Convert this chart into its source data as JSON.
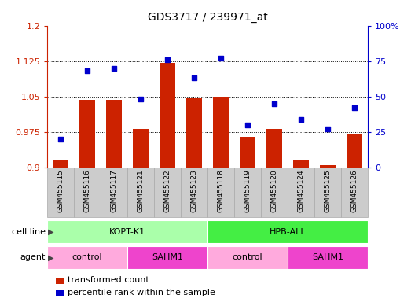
{
  "title": "GDS3717 / 239971_at",
  "samples": [
    "GSM455115",
    "GSM455116",
    "GSM455117",
    "GSM455121",
    "GSM455122",
    "GSM455123",
    "GSM455118",
    "GSM455119",
    "GSM455120",
    "GSM455124",
    "GSM455125",
    "GSM455126"
  ],
  "red_values": [
    0.915,
    1.043,
    1.043,
    0.982,
    1.122,
    1.047,
    1.049,
    0.965,
    0.982,
    0.916,
    0.906,
    0.97
  ],
  "blue_values": [
    20,
    68,
    70,
    48,
    76,
    63,
    77,
    30,
    45,
    34,
    27,
    42
  ],
  "ylim_left": [
    0.9,
    1.2
  ],
  "ylim_right": [
    0,
    100
  ],
  "yticks_left": [
    0.9,
    0.975,
    1.05,
    1.125,
    1.2
  ],
  "yticks_right": [
    0,
    25,
    50,
    75,
    100
  ],
  "ytick_labels_left": [
    "0.9",
    "0.975",
    "1.05",
    "1.125",
    "1.2"
  ],
  "ytick_labels_right": [
    "0",
    "25",
    "50",
    "75",
    "100%"
  ],
  "cell_line_groups": [
    {
      "label": "KOPT-K1",
      "start": 0,
      "end": 6,
      "color": "#AAFFAA"
    },
    {
      "label": "HPB-ALL",
      "start": 6,
      "end": 12,
      "color": "#44EE44"
    }
  ],
  "agent_groups": [
    {
      "label": "control",
      "start": 0,
      "end": 3,
      "color": "#FFAADD"
    },
    {
      "label": "SAHM1",
      "start": 3,
      "end": 6,
      "color": "#EE44CC"
    },
    {
      "label": "control",
      "start": 6,
      "end": 9,
      "color": "#FFAADD"
    },
    {
      "label": "SAHM1",
      "start": 9,
      "end": 12,
      "color": "#EE44CC"
    }
  ],
  "bar_color": "#CC2200",
  "dot_color": "#0000CC",
  "bar_width": 0.6,
  "grid_color": "black",
  "legend_items": [
    {
      "label": "transformed count",
      "color": "#CC2200"
    },
    {
      "label": "percentile rank within the sample",
      "color": "#0000CC"
    }
  ],
  "cell_line_label": "cell line",
  "agent_label": "agent",
  "left_axis_color": "#CC2200",
  "right_axis_color": "#0000CC",
  "tick_bg_color": "#CCCCCC",
  "tick_border_color": "#AAAAAA"
}
